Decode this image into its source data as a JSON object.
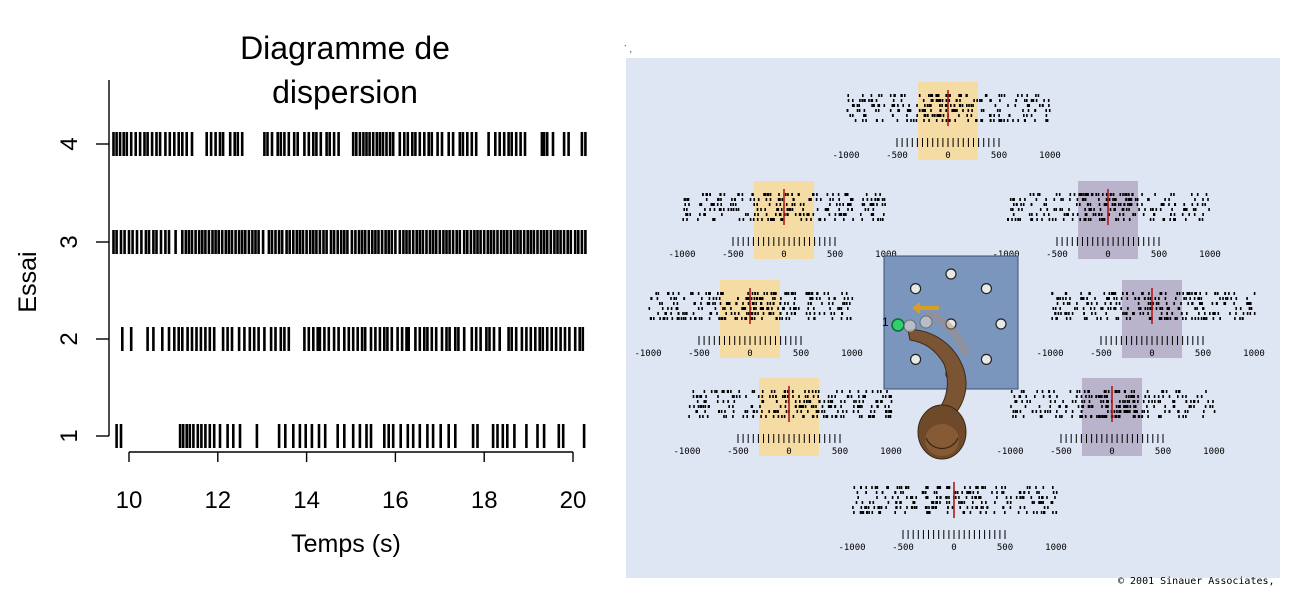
{
  "chart_data": {
    "type": "scatter",
    "subtype": "spike raster",
    "title": "Diagramme de dispersion",
    "xlabel": "Temps (s)",
    "ylabel": "Essai",
    "xlim": [
      9.6,
      20.3
    ],
    "ylim": [
      0.7,
      4.4
    ],
    "x_ticks": [
      "10",
      "12",
      "14",
      "16",
      "18",
      "20"
    ],
    "y_ticks": [
      "1",
      "2",
      "3",
      "4"
    ],
    "series": [
      {
        "trial": 1,
        "spikes": [
          9.72,
          9.82,
          11.15,
          11.22,
          11.3,
          11.37,
          11.45,
          11.55,
          11.63,
          11.72,
          11.82,
          11.92,
          12.05,
          12.22,
          12.35,
          12.5,
          12.88,
          13.38,
          13.52,
          13.7,
          13.85,
          13.98,
          14.12,
          14.28,
          14.42,
          14.7,
          14.85,
          15.05,
          15.2,
          15.35,
          15.45,
          15.75,
          15.85,
          15.95,
          16.12,
          16.28,
          16.4,
          16.55,
          16.72,
          16.85,
          17.02,
          17.2,
          17.35,
          17.75,
          17.85,
          18.2,
          18.3,
          18.42,
          18.52,
          18.68,
          18.95,
          19.2,
          19.35,
          19.68,
          19.78,
          20.25
        ]
      },
      {
        "trial": 2,
        "spikes": [
          9.85,
          10.05,
          10.42,
          10.55,
          10.75,
          10.9,
          11.02,
          11.12,
          11.2,
          11.32,
          11.42,
          11.52,
          11.62,
          11.72,
          11.82,
          11.92,
          12.12,
          12.22,
          12.32,
          12.48,
          12.6,
          12.72,
          12.82,
          12.92,
          13.05,
          13.2,
          13.3,
          13.42,
          13.5,
          13.6,
          13.95,
          14.05,
          14.15,
          14.25,
          14.3,
          14.4,
          14.5,
          14.62,
          14.72,
          14.85,
          14.95,
          15.05,
          15.15,
          15.25,
          15.32,
          15.45,
          15.55,
          15.65,
          15.75,
          15.82,
          15.92,
          16.05,
          16.15,
          16.25,
          16.3,
          16.45,
          16.55,
          16.65,
          16.72,
          16.82,
          16.92,
          17.05,
          17.15,
          17.22,
          17.35,
          17.42,
          17.55,
          17.72,
          17.82,
          17.92,
          18.05,
          18.12,
          18.22,
          18.35,
          18.55,
          18.62,
          18.72,
          18.85,
          18.95,
          19.05,
          19.15,
          19.25,
          19.32,
          19.42,
          19.52,
          19.62,
          19.72,
          19.82,
          19.92,
          20.05,
          20.15,
          20.22
        ]
      },
      {
        "trial": 3,
        "spikes": [
          9.65,
          9.72,
          9.82,
          9.9,
          10.0,
          10.08,
          10.18,
          10.28,
          10.38,
          10.45,
          10.55,
          10.62,
          10.72,
          10.82,
          10.9,
          11.05,
          11.2,
          11.28,
          11.35,
          11.42,
          11.5,
          11.58,
          11.65,
          11.72,
          11.8,
          11.88,
          11.95,
          12.02,
          12.1,
          12.18,
          12.25,
          12.32,
          12.4,
          12.48,
          12.55,
          12.62,
          12.7,
          12.78,
          12.85,
          12.92,
          13.02,
          13.15,
          13.22,
          13.3,
          13.38,
          13.45,
          13.55,
          13.62,
          13.7,
          13.78,
          13.85,
          13.92,
          14.0,
          14.08,
          14.15,
          14.22,
          14.3,
          14.38,
          14.45,
          14.55,
          14.62,
          14.7,
          14.78,
          14.85,
          14.92,
          15.02,
          15.1,
          15.18,
          15.25,
          15.32,
          15.4,
          15.48,
          15.55,
          15.62,
          15.7,
          15.78,
          15.85,
          15.92,
          16.0,
          16.1,
          16.18,
          16.25,
          16.32,
          16.4,
          16.48,
          16.55,
          16.62,
          16.7,
          16.78,
          16.85,
          16.92,
          17.0,
          17.08,
          17.15,
          17.22,
          17.3,
          17.38,
          17.45,
          17.55,
          17.62,
          17.7,
          17.78,
          17.85,
          17.92,
          18.0,
          18.08,
          18.15,
          18.22,
          18.3,
          18.38,
          18.45,
          18.52,
          18.6,
          18.68,
          18.75,
          18.82,
          18.9,
          18.98,
          19.05,
          19.12,
          19.2,
          19.28,
          19.35,
          19.42,
          19.5,
          19.58,
          19.65,
          19.72,
          19.8,
          19.88,
          19.95,
          20.05,
          20.12,
          20.2,
          20.28
        ]
      },
      {
        "trial": 4,
        "spikes": [
          9.65,
          9.72,
          9.8,
          9.88,
          9.95,
          10.05,
          10.15,
          10.25,
          10.35,
          10.42,
          10.52,
          10.62,
          10.7,
          10.82,
          10.92,
          11.02,
          11.12,
          11.2,
          11.3,
          11.42,
          11.75,
          11.85,
          11.95,
          12.05,
          12.12,
          12.28,
          12.38,
          12.45,
          12.55,
          13.05,
          13.12,
          13.22,
          13.35,
          13.42,
          13.5,
          13.6,
          13.72,
          13.8,
          13.95,
          14.05,
          14.15,
          14.22,
          14.32,
          14.45,
          14.52,
          14.62,
          14.72,
          15.05,
          15.12,
          15.2,
          15.28,
          15.35,
          15.42,
          15.5,
          15.58,
          15.65,
          15.72,
          15.8,
          15.88,
          15.95,
          16.1,
          16.2,
          16.28,
          16.38,
          16.45,
          16.55,
          16.65,
          16.75,
          16.82,
          16.95,
          17.05,
          17.2,
          17.3,
          17.45,
          17.52,
          17.62,
          17.72,
          17.82,
          18.1,
          18.25,
          18.35,
          18.45,
          18.55,
          18.62,
          18.72,
          18.82,
          18.92,
          19.3,
          19.35,
          19.42,
          19.55,
          19.8,
          19.9,
          20.2,
          20.28
        ]
      }
    ]
  },
  "right_figure": {
    "tick_labels": [
      "-1000",
      "-500",
      "0",
      "500",
      "1000"
    ],
    "marker": "1",
    "credit": "© 2001 Sinauer Associates,",
    "colors": {
      "background": "#dfe6f3",
      "highlight_active": "#f4dca4",
      "highlight_inactive": "#b9b3cc",
      "center_panel": "#7b96bc",
      "red_marker": "#b01818",
      "arrow": "#d8a020"
    }
  }
}
